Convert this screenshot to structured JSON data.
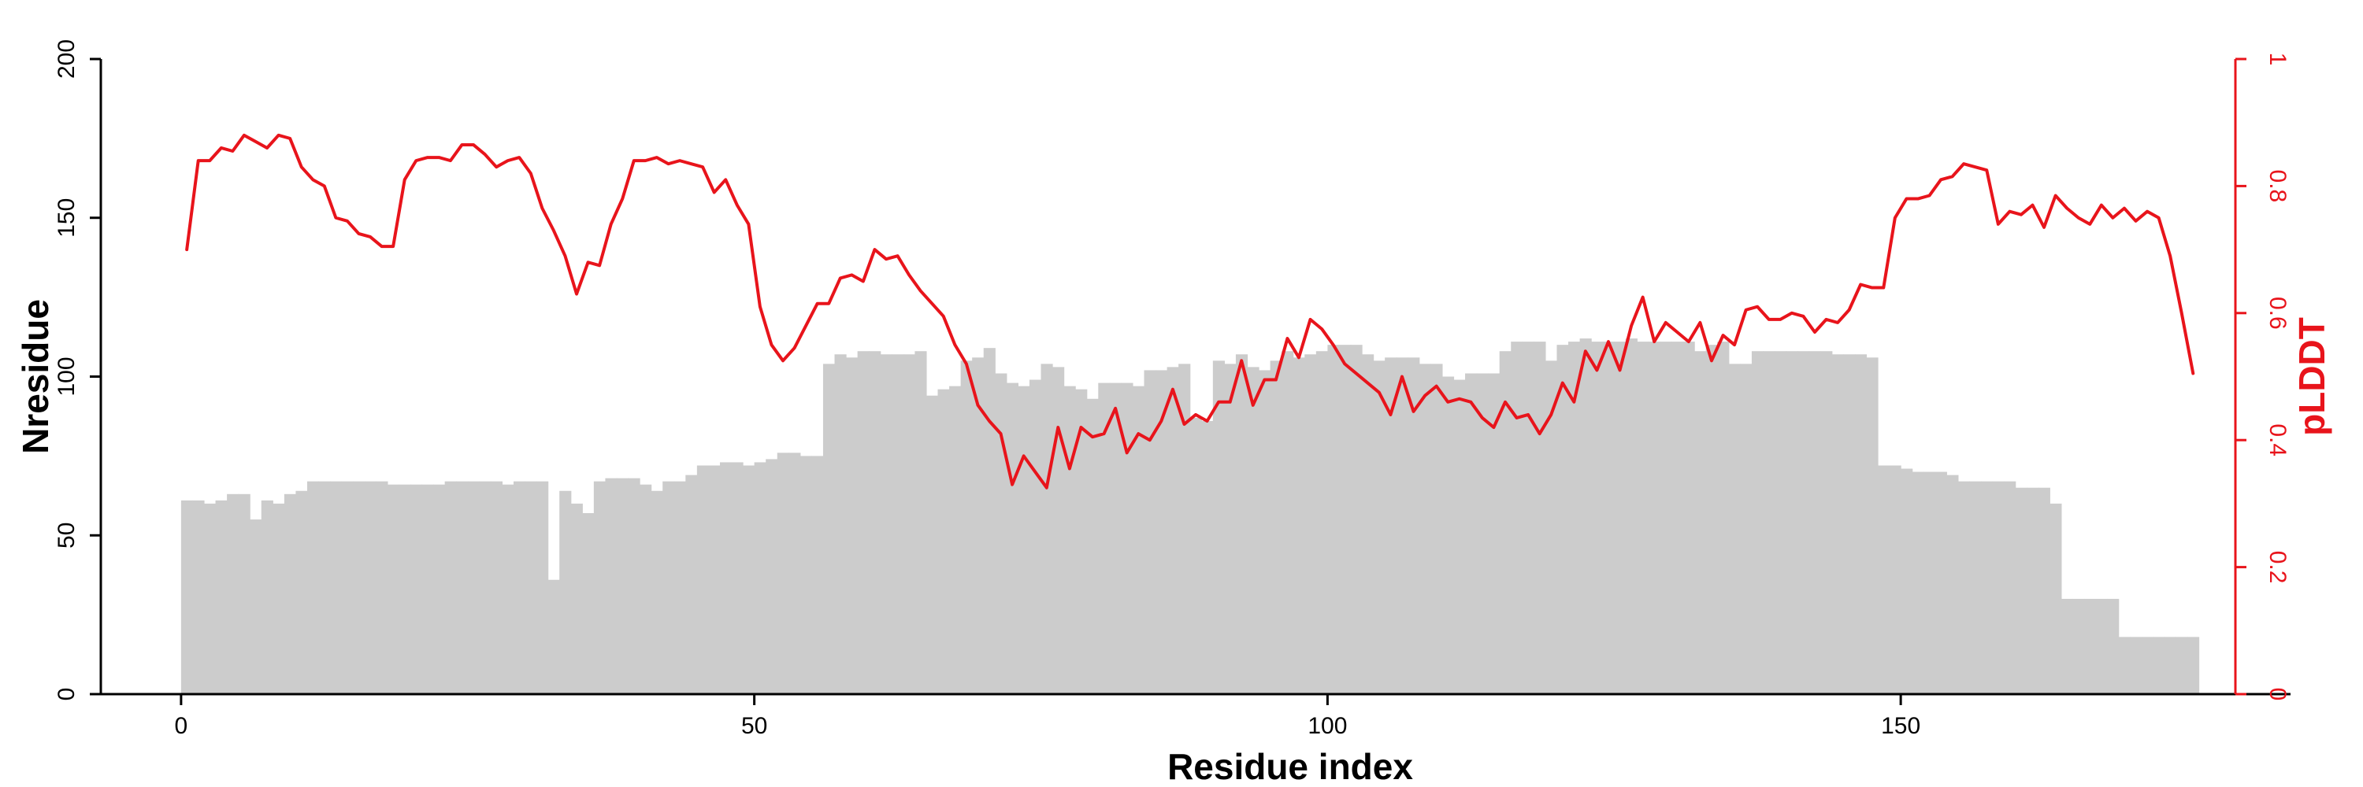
{
  "chart_data": {
    "type": "bar",
    "title": "",
    "xlabel": "Residue index",
    "ylabel": "Nresidue",
    "y2label": "pLDDT",
    "xlim": [
      -7,
      184
    ],
    "ylim": [
      0,
      200
    ],
    "y2lim": [
      0,
      1
    ],
    "x_ticks": [
      0,
      50,
      100,
      150
    ],
    "y_ticks": [
      0,
      50,
      100,
      150,
      200
    ],
    "y2_ticks": [
      0,
      0.2,
      0.4,
      0.6,
      0.8,
      1
    ],
    "grid": false,
    "legend": "none",
    "colors": {
      "bars": "#cccccc",
      "line": "#e8141b",
      "left_axis": "#000000",
      "right_axis": "#e8141b"
    },
    "series": [
      {
        "type": "bar",
        "axis": "left",
        "x": [
          0,
          1,
          2,
          3,
          4,
          5,
          6,
          7,
          8,
          9,
          10,
          11,
          12,
          13,
          14,
          15,
          16,
          17,
          18,
          19,
          20,
          21,
          22,
          23,
          24,
          25,
          26,
          27,
          28,
          29,
          30,
          31,
          32,
          33,
          34,
          35,
          36,
          37,
          38,
          39,
          40,
          41,
          42,
          43,
          44,
          45,
          46,
          47,
          48,
          49,
          50,
          51,
          52,
          53,
          54,
          55,
          56,
          57,
          58,
          59,
          60,
          61,
          62,
          63,
          64,
          65,
          66,
          67,
          68,
          69,
          70,
          71,
          72,
          73,
          74,
          75,
          76,
          77,
          78,
          79,
          80,
          81,
          82,
          83,
          84,
          85,
          86,
          87,
          88,
          89,
          90,
          91,
          92,
          93,
          94,
          95,
          96,
          97,
          98,
          99,
          100,
          101,
          102,
          103,
          104,
          105,
          106,
          107,
          108,
          109,
          110,
          111,
          112,
          113,
          114,
          115,
          116,
          117,
          118,
          119,
          120,
          121,
          122,
          123,
          124,
          125,
          126,
          127,
          128,
          129,
          130,
          131,
          132,
          133,
          134,
          135,
          136,
          137,
          138,
          139,
          140,
          141,
          142,
          143,
          144,
          145,
          146,
          147,
          148,
          149,
          150,
          151,
          152,
          153,
          154,
          155,
          156,
          157,
          158,
          159,
          160,
          161,
          162,
          163,
          164,
          165,
          166,
          167,
          168,
          169,
          170,
          171,
          172,
          173,
          174,
          175
        ],
        "values": [
          61,
          61,
          60,
          61,
          63,
          63,
          55,
          61,
          60,
          63,
          64,
          67,
          67,
          67,
          67,
          67,
          67,
          67,
          66,
          66,
          66,
          66,
          66,
          67,
          67,
          67,
          67,
          67,
          66,
          67,
          67,
          67,
          36,
          64,
          60,
          57,
          67,
          68,
          68,
          68,
          66,
          64,
          67,
          67,
          69,
          72,
          72,
          73,
          73,
          72,
          73,
          74,
          76,
          76,
          75,
          75,
          104,
          107,
          106,
          108,
          108,
          107,
          107,
          107,
          108,
          94,
          96,
          97,
          105,
          106,
          109,
          101,
          98,
          97,
          99,
          104,
          103,
          97,
          96,
          93,
          98,
          98,
          98,
          97,
          102,
          102,
          103,
          104,
          87,
          86,
          105,
          104,
          107,
          103,
          102,
          105,
          108,
          106,
          107,
          108,
          110,
          110,
          110,
          107,
          105,
          106,
          106,
          106,
          104,
          104,
          100,
          99,
          101,
          101,
          101,
          108,
          111,
          111,
          111,
          105,
          110,
          111,
          112,
          111,
          111,
          111,
          112,
          111,
          111,
          111,
          111,
          111,
          108,
          110,
          111,
          104,
          104,
          108,
          108,
          108,
          108,
          108,
          108,
          108,
          107,
          107,
          107,
          106,
          72,
          72,
          71,
          70,
          70,
          70,
          69,
          67,
          67,
          67,
          67,
          67,
          65,
          65,
          65,
          60,
          30,
          30,
          30,
          30,
          30,
          18,
          18,
          18,
          18,
          18,
          18,
          18
        ]
      },
      {
        "type": "line",
        "axis": "right",
        "x": [
          0,
          1,
          2,
          3,
          4,
          5,
          6,
          7,
          8,
          9,
          10,
          11,
          12,
          13,
          14,
          15,
          16,
          17,
          18,
          19,
          20,
          21,
          22,
          23,
          24,
          25,
          26,
          27,
          28,
          29,
          30,
          31,
          32,
          33,
          34,
          35,
          36,
          37,
          38,
          39,
          40,
          41,
          42,
          43,
          44,
          45,
          46,
          47,
          48,
          49,
          50,
          51,
          52,
          53,
          54,
          55,
          56,
          57,
          58,
          59,
          60,
          61,
          62,
          63,
          64,
          65,
          66,
          67,
          68,
          69,
          70,
          71,
          72,
          73,
          74,
          75,
          76,
          77,
          78,
          79,
          80,
          81,
          82,
          83,
          84,
          85,
          86,
          87,
          88,
          89,
          90,
          91,
          92,
          93,
          94,
          95,
          96,
          97,
          98,
          99,
          100,
          101,
          102,
          103,
          104,
          105,
          106,
          107,
          108,
          109,
          110,
          111,
          112,
          113,
          114,
          115,
          116,
          117,
          118,
          119,
          120,
          121,
          122,
          123,
          124,
          125,
          126,
          127,
          128,
          129,
          130,
          131,
          132,
          133,
          134,
          135,
          136,
          137,
          138,
          139,
          140,
          141,
          142,
          143,
          144,
          145,
          146,
          147,
          148,
          149,
          150,
          151,
          152,
          153,
          154,
          155,
          156,
          157,
          158,
          159,
          160,
          161,
          162,
          163,
          164,
          165,
          166,
          167,
          168,
          169,
          170,
          171,
          172,
          173,
          174,
          175
        ],
        "values": [
          0.7,
          0.84,
          0.84,
          0.86,
          0.855,
          0.88,
          0.87,
          0.86,
          0.88,
          0.875,
          0.83,
          0.81,
          0.8,
          0.75,
          0.745,
          0.725,
          0.72,
          0.705,
          0.705,
          0.81,
          0.84,
          0.845,
          0.845,
          0.84,
          0.865,
          0.865,
          0.85,
          0.83,
          0.84,
          0.845,
          0.82,
          0.765,
          0.73,
          0.69,
          0.63,
          0.68,
          0.675,
          0.74,
          0.78,
          0.84,
          0.84,
          0.845,
          0.835,
          0.84,
          0.835,
          0.83,
          0.79,
          0.81,
          0.77,
          0.74,
          0.61,
          0.55,
          0.525,
          0.545,
          0.58,
          0.615,
          0.615,
          0.655,
          0.66,
          0.65,
          0.7,
          0.685,
          0.69,
          0.66,
          0.635,
          0.615,
          0.595,
          0.55,
          0.52,
          0.455,
          0.43,
          0.41,
          0.33,
          0.375,
          0.35,
          0.325,
          0.42,
          0.355,
          0.42,
          0.405,
          0.41,
          0.45,
          0.38,
          0.41,
          0.4,
          0.43,
          0.48,
          0.425,
          0.44,
          0.43,
          0.46,
          0.46,
          0.525,
          0.455,
          0.495,
          0.495,
          0.56,
          0.53,
          0.59,
          0.575,
          0.55,
          0.52,
          0.505,
          0.49,
          0.475,
          0.44,
          0.5,
          0.445,
          0.47,
          0.485,
          0.46,
          0.465,
          0.46,
          0.435,
          0.42,
          0.46,
          0.435,
          0.44,
          0.41,
          0.44,
          0.49,
          0.46,
          0.54,
          0.51,
          0.555,
          0.51,
          0.58,
          0.625,
          0.555,
          0.585,
          0.57,
          0.555,
          0.585,
          0.525,
          0.565,
          0.55,
          0.605,
          0.61,
          0.59,
          0.59,
          0.6,
          0.595,
          0.57,
          0.59,
          0.585,
          0.605,
          0.645,
          0.64,
          0.64,
          0.75,
          0.78,
          0.78,
          0.785,
          0.81,
          0.815,
          0.835,
          0.83,
          0.825,
          0.74,
          0.76,
          0.755,
          0.77,
          0.735,
          0.785,
          0.765,
          0.75,
          0.74,
          0.77,
          0.75,
          0.765,
          0.745,
          0.76,
          0.75,
          0.69,
          0.6,
          0.505
        ]
      }
    ]
  }
}
